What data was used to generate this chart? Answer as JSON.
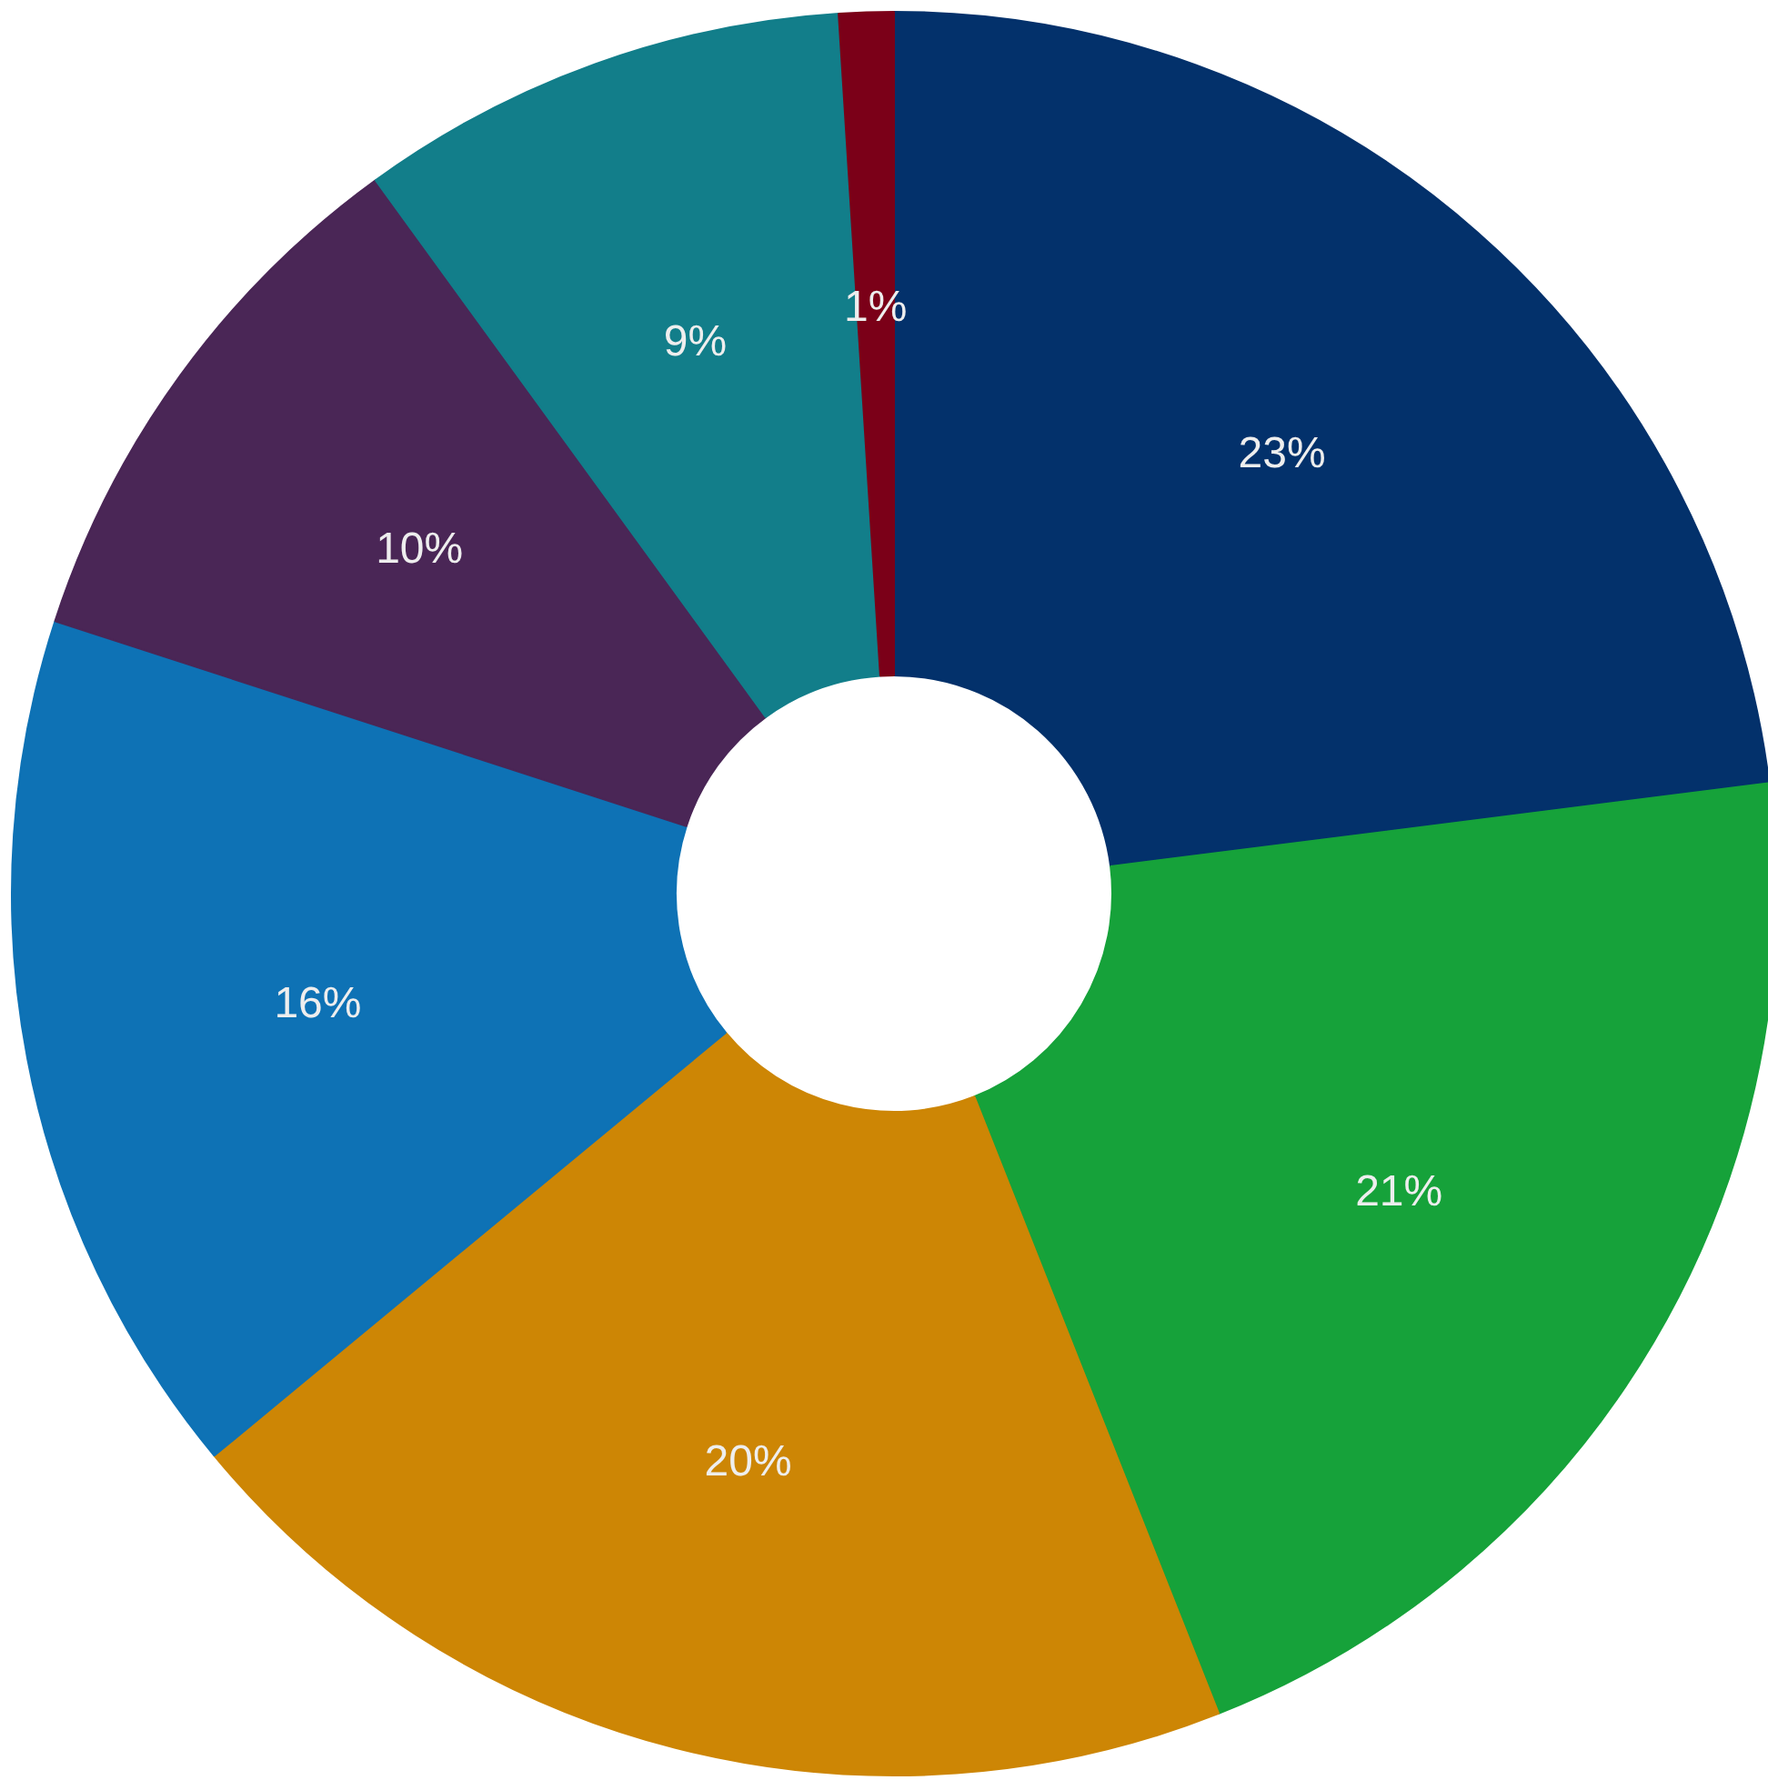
{
  "chart_data": {
    "type": "donut",
    "categories": [
      null,
      null,
      null,
      null,
      null,
      null,
      null
    ],
    "values": [
      23,
      21,
      20,
      16,
      10,
      9,
      1
    ],
    "colors": [
      "#03316b",
      "#16a23a",
      "#cd8605",
      "#0e72b5",
      "#4a2656",
      "#127e8a",
      "#7b0018"
    ],
    "value_labels": [
      "23%",
      "21%",
      "20%",
      "16%",
      "10%",
      "9%",
      "1%"
    ]
  }
}
